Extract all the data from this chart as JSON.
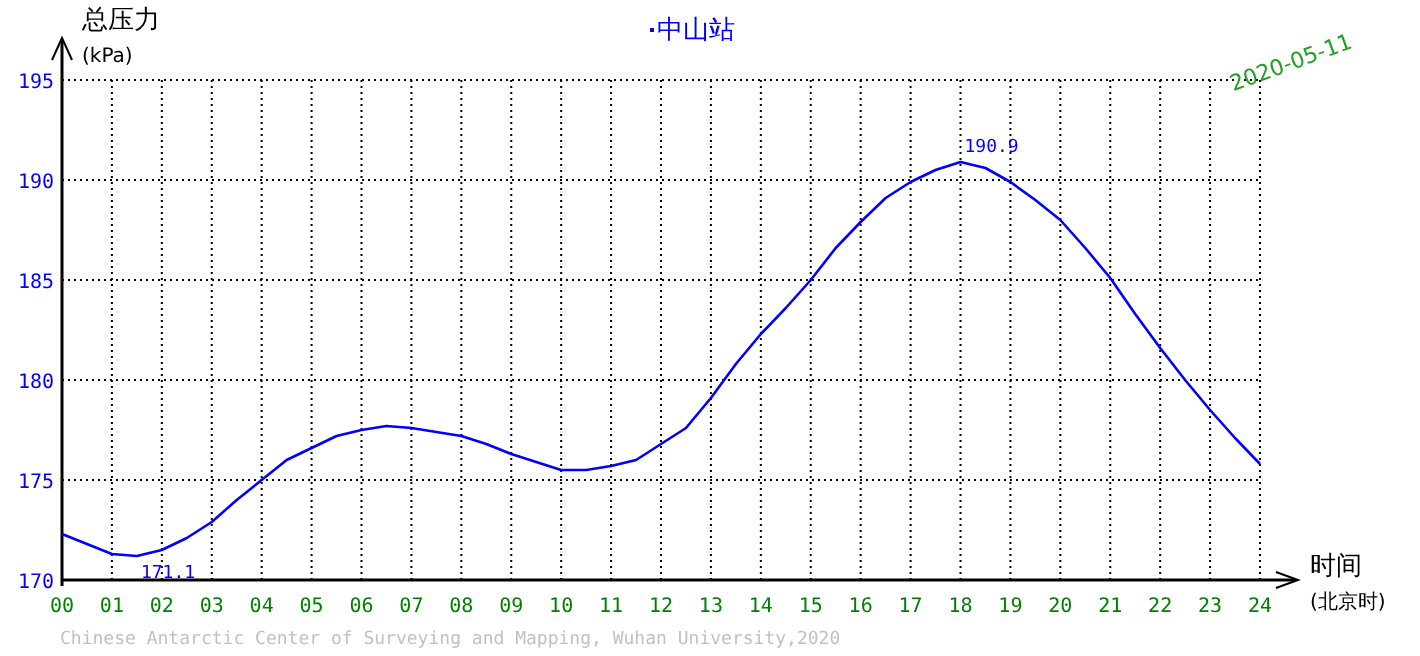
{
  "chart_data": {
    "type": "line",
    "title": "中山站",
    "xlabel": "时间\n(北京时)",
    "ylabel": "总压力\n(kPa)",
    "x": [
      0,
      0.5,
      1,
      1.5,
      2,
      2.5,
      3,
      3.5,
      4,
      4.5,
      5,
      5.5,
      6,
      6.5,
      7,
      7.5,
      8,
      8.5,
      9,
      9.5,
      10,
      10.5,
      11,
      11.5,
      12,
      12.5,
      13,
      13.5,
      14,
      14.5,
      15,
      15.5,
      16,
      16.5,
      17,
      17.5,
      18,
      18.5,
      19,
      19.5,
      20,
      20.5,
      21,
      21.5,
      22,
      22.5,
      23,
      23.5,
      24
    ],
    "series": [
      {
        "color": "#0000ff",
        "values": [
          172.3,
          171.8,
          171.3,
          171.2,
          171.5,
          172.1,
          172.9,
          174.0,
          175.0,
          176.0,
          176.6,
          177.2,
          177.5,
          177.7,
          177.6,
          177.4,
          177.2,
          176.8,
          176.3,
          175.9,
          175.5,
          175.5,
          175.7,
          176.0,
          176.8,
          177.6,
          179.1,
          180.8,
          182.3,
          183.6,
          185.0,
          186.6,
          187.9,
          189.1,
          189.9,
          190.5,
          190.9,
          190.6,
          189.9,
          189.0,
          188.0,
          186.6,
          185.1,
          183.3,
          181.6,
          180.0,
          178.5,
          177.1,
          175.8
        ]
      }
    ],
    "xlim": [
      0,
      24
    ],
    "ylim": [
      170,
      195
    ],
    "xticks": [
      {
        "value": 0,
        "label": "00"
      },
      {
        "value": 1,
        "label": "01"
      },
      {
        "value": 2,
        "label": "02"
      },
      {
        "value": 3,
        "label": "03"
      },
      {
        "value": 4,
        "label": "04"
      },
      {
        "value": 5,
        "label": "05"
      },
      {
        "value": 6,
        "label": "06"
      },
      {
        "value": 7,
        "label": "07"
      },
      {
        "value": 8,
        "label": "08"
      },
      {
        "value": 9,
        "label": "09"
      },
      {
        "value": 10,
        "label": "10"
      },
      {
        "value": 11,
        "label": "11"
      },
      {
        "value": 12,
        "label": "12"
      },
      {
        "value": 13,
        "label": "13"
      },
      {
        "value": 14,
        "label": "14"
      },
      {
        "value": 15,
        "label": "15"
      },
      {
        "value": 16,
        "label": "16"
      },
      {
        "value": 17,
        "label": "17"
      },
      {
        "value": 18,
        "label": "18"
      },
      {
        "value": 19,
        "label": "19"
      },
      {
        "value": 20,
        "label": "20"
      },
      {
        "value": 21,
        "label": "21"
      },
      {
        "value": 22,
        "label": "22"
      },
      {
        "value": 23,
        "label": "23"
      },
      {
        "value": 24,
        "label": "24"
      }
    ],
    "yticks": [
      170,
      175,
      180,
      185,
      190,
      195
    ],
    "grid": true,
    "annotations": [
      {
        "text": "190.9",
        "x": 18,
        "y": 190.9
      },
      {
        "text": "171.1",
        "x": 1.5,
        "y": 171.1
      },
      "2020-05-11",
      "Chinese Antarctic Center of Surveying and Mapping, Wuhan University,2020"
    ]
  }
}
